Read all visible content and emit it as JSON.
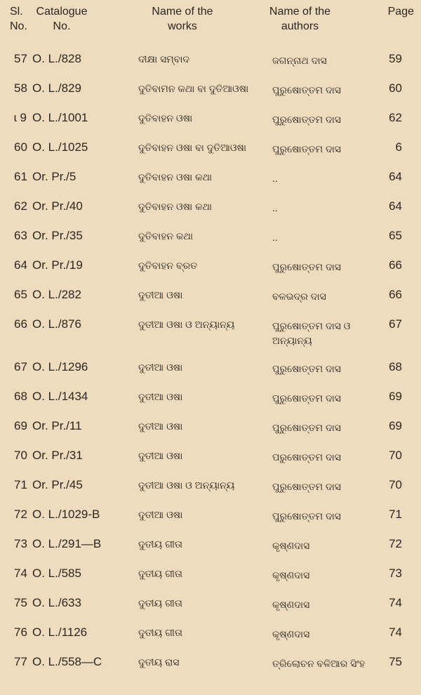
{
  "header": {
    "sl": [
      "Sl.",
      "No."
    ],
    "catalogue": [
      "Catalogue",
      "No."
    ],
    "works": [
      "Name of the",
      "works"
    ],
    "authors": [
      "Name of the",
      "authors"
    ],
    "page": [
      "Page"
    ]
  },
  "rows": [
    {
      "sl": "57",
      "cat": "O. L./828",
      "work": "ଦୀକ୍ଷା ସମ୍ବାଦ",
      "author": "ଜଗନ୍ନାଥ ଦାସ",
      "page": "59"
    },
    {
      "sl": "58",
      "cat": "O. L./829",
      "work": "ଦୁତିବାମନ କଥା ବା ଦୁତିଆଓଷା",
      "author": "ପୁରୁଷୋତ୍ତମ ଦାସ",
      "page": "60"
    },
    {
      "sl": "ɩ 9",
      "cat": "O. L./1001",
      "work": "ଦୁତିବାହନ ଓଷା",
      "author": "ପୁରୁଷୋତ୍ତମ ଦାସ",
      "page": "62"
    },
    {
      "sl": "60",
      "cat": "O. L./1025",
      "work": "ଦୁତିବାହନ ଓଷା ବା ଦୁତିଆଓଷା",
      "author": "ପୁରୁଷୋତ୍ତମ ଦାସ",
      "page": "6"
    },
    {
      "sl": "61",
      "cat": "Or. Pr./5",
      "work": "ଦୁତିବାହନ ଓଷା କଥା",
      "author": "..",
      "page": "64"
    },
    {
      "sl": "62",
      "cat": "Or. Pr./40",
      "work": "ଦୁତିବାହନ ଓଷା କଥା",
      "author": "..",
      "page": "64"
    },
    {
      "sl": "63",
      "cat": "Or. Pr./35",
      "work": "ଦୁତିବାହନ କଥା",
      "author": "..",
      "page": "65"
    },
    {
      "sl": "64",
      "cat": "Or. Pr./19",
      "work": "ଦୁତିବାହନ ବ୍ରତ",
      "author": "ପୁରୁଷୋତ୍ତମ ଦାସ",
      "page": "66"
    },
    {
      "sl": "65",
      "cat": "O. L./282",
      "work": "ଦୁତୀଆ ଓଷା",
      "author": "ବଳଭଦ୍ର ଦାସ",
      "page": "66"
    },
    {
      "sl": "66",
      "cat": "O. L./876",
      "work": "ଦୁତୀଆ ଓଷା ଓ ଅନ୍ୟାନ୍ୟ",
      "author": "ପୁରୁଷୋତ୍ତମ ଦାସ ଓ ଅନ୍ୟାନ୍ୟ",
      "page": "67"
    },
    {
      "sl": "67",
      "cat": "O. L./1296",
      "work": "ଦୁତୀଆ ଓଷା",
      "author": "ପୁରୁଷୋତ୍ତମ ଦାସ",
      "page": "68"
    },
    {
      "sl": "68",
      "cat": "O. L./1434",
      "work": "ଦୁତୀଆ ଓଷା",
      "author": "ପୁରୁଷୋତ୍ତମ ଦାସ",
      "page": "69"
    },
    {
      "sl": "69",
      "cat": "Or. Pr./11",
      "work": "ଦୁତୀଆ ଓଷା",
      "author": "ପୁରୁଷୋତ୍ତମ ଦାସ",
      "page": "69"
    },
    {
      "sl": "70",
      "cat": "Or. Pr./31",
      "work": "ଦୁତୀଆ ଓଷା",
      "author": "ପରୁଷୋତ୍ତମ ଦାସ",
      "page": "70"
    },
    {
      "sl": "71",
      "cat": "Or. Pr./45",
      "work": "ଦୁତୀଆ ଓଷା ଓ ଅନ୍ୟାନ୍ୟ",
      "author": "ପୁରୁଷୋତ୍ତମ ଦାସ",
      "page": "70"
    },
    {
      "sl": "72",
      "cat": "O. L./1029-B",
      "work": "ଦୁତୀଆ ଓଷା",
      "author": "ପୁରୁଷୋତ୍ତମ ଦାସ",
      "page": "71"
    },
    {
      "sl": "73",
      "cat": "O. L./291—B",
      "work": "ଦୁତୀୟ ଗୀତା",
      "author": "କୃଷ୍ଣଦାସ",
      "page": "72"
    },
    {
      "sl": "74",
      "cat": "O. L./585",
      "work": "ଦୁତୀୟ ଗୀତା",
      "author": "କୃଷ୍ଣଦାସ",
      "page": "73"
    },
    {
      "sl": "75",
      "cat": "O. L./633",
      "work": "ଦୁତୀୟ ଗୀତା",
      "author": "କୃଷ୍ଣଦାସ",
      "page": "74"
    },
    {
      "sl": "76",
      "cat": "O. L./1126",
      "work": "ଦୁତୀୟ ଗୀତା",
      "author": "କୃଷ୍ଣଦାସ",
      "page": "74"
    },
    {
      "sl": "77",
      "cat": "O. L./558—C",
      "work": "ଦୁତୀୟ ରାସ",
      "author": "ତ୍ରିଲୋଚନ ବଳିଆର ସିଂହ",
      "page": "75"
    }
  ]
}
